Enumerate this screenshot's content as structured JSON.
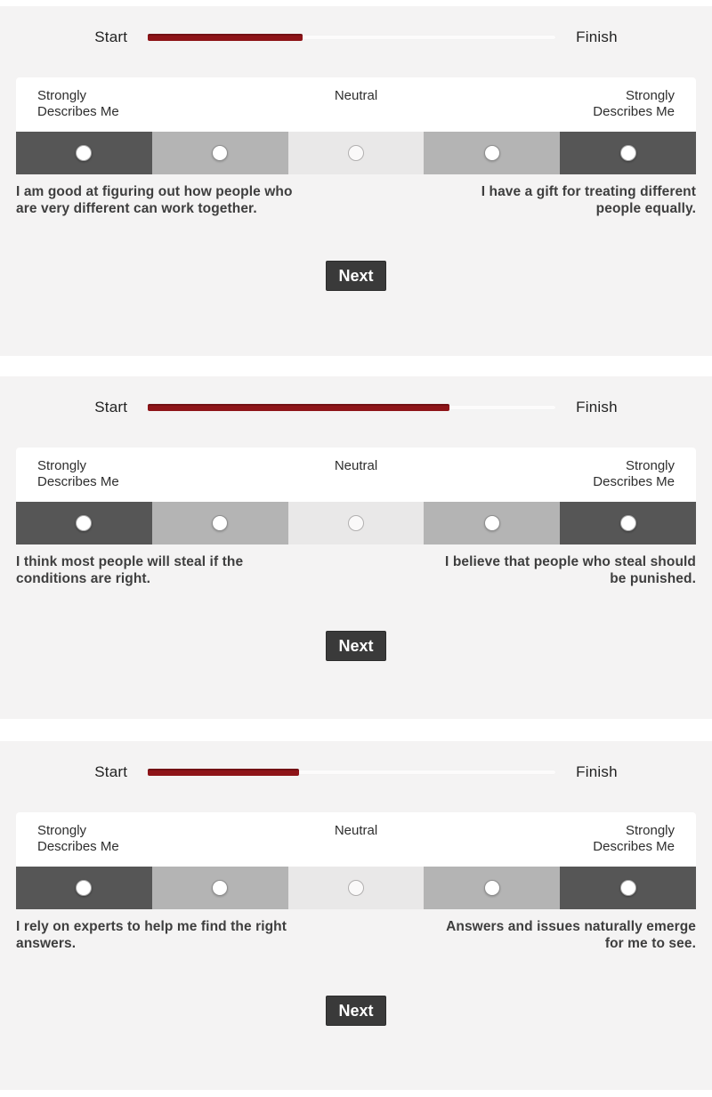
{
  "page": {
    "background": "#f4f3f3",
    "divider_color": "#ffffff"
  },
  "progress": {
    "start_label": "Start",
    "finish_label": "Finish",
    "fill_color": "#8e1418",
    "track_color": "#fcfbfb"
  },
  "scale": {
    "left_label": "Strongly Describes Me",
    "center_label": "Neutral",
    "right_label": "Strongly Describes Me",
    "segment_colors": [
      "#565656",
      "#b4b4b4",
      "#e9e8e8",
      "#b4b4b4",
      "#565656"
    ]
  },
  "button": {
    "color": "#3a3a3a"
  },
  "questions": [
    {
      "progress_percent": 38,
      "left_statement": "I am good at figuring out how people who are very different can work together.",
      "right_statement": "I have a gift for treating different people equally.",
      "next_label": "Next"
    },
    {
      "progress_percent": 74,
      "left_statement": "I think most people will steal if the conditions are right.",
      "right_statement": "I believe that people who steal should be punished.",
      "next_label": "Next"
    },
    {
      "progress_percent": 37,
      "left_statement": "I rely on experts to help me find the right answers.",
      "right_statement": "Answers and issues naturally emerge for me to see.",
      "next_label": "Next"
    }
  ]
}
